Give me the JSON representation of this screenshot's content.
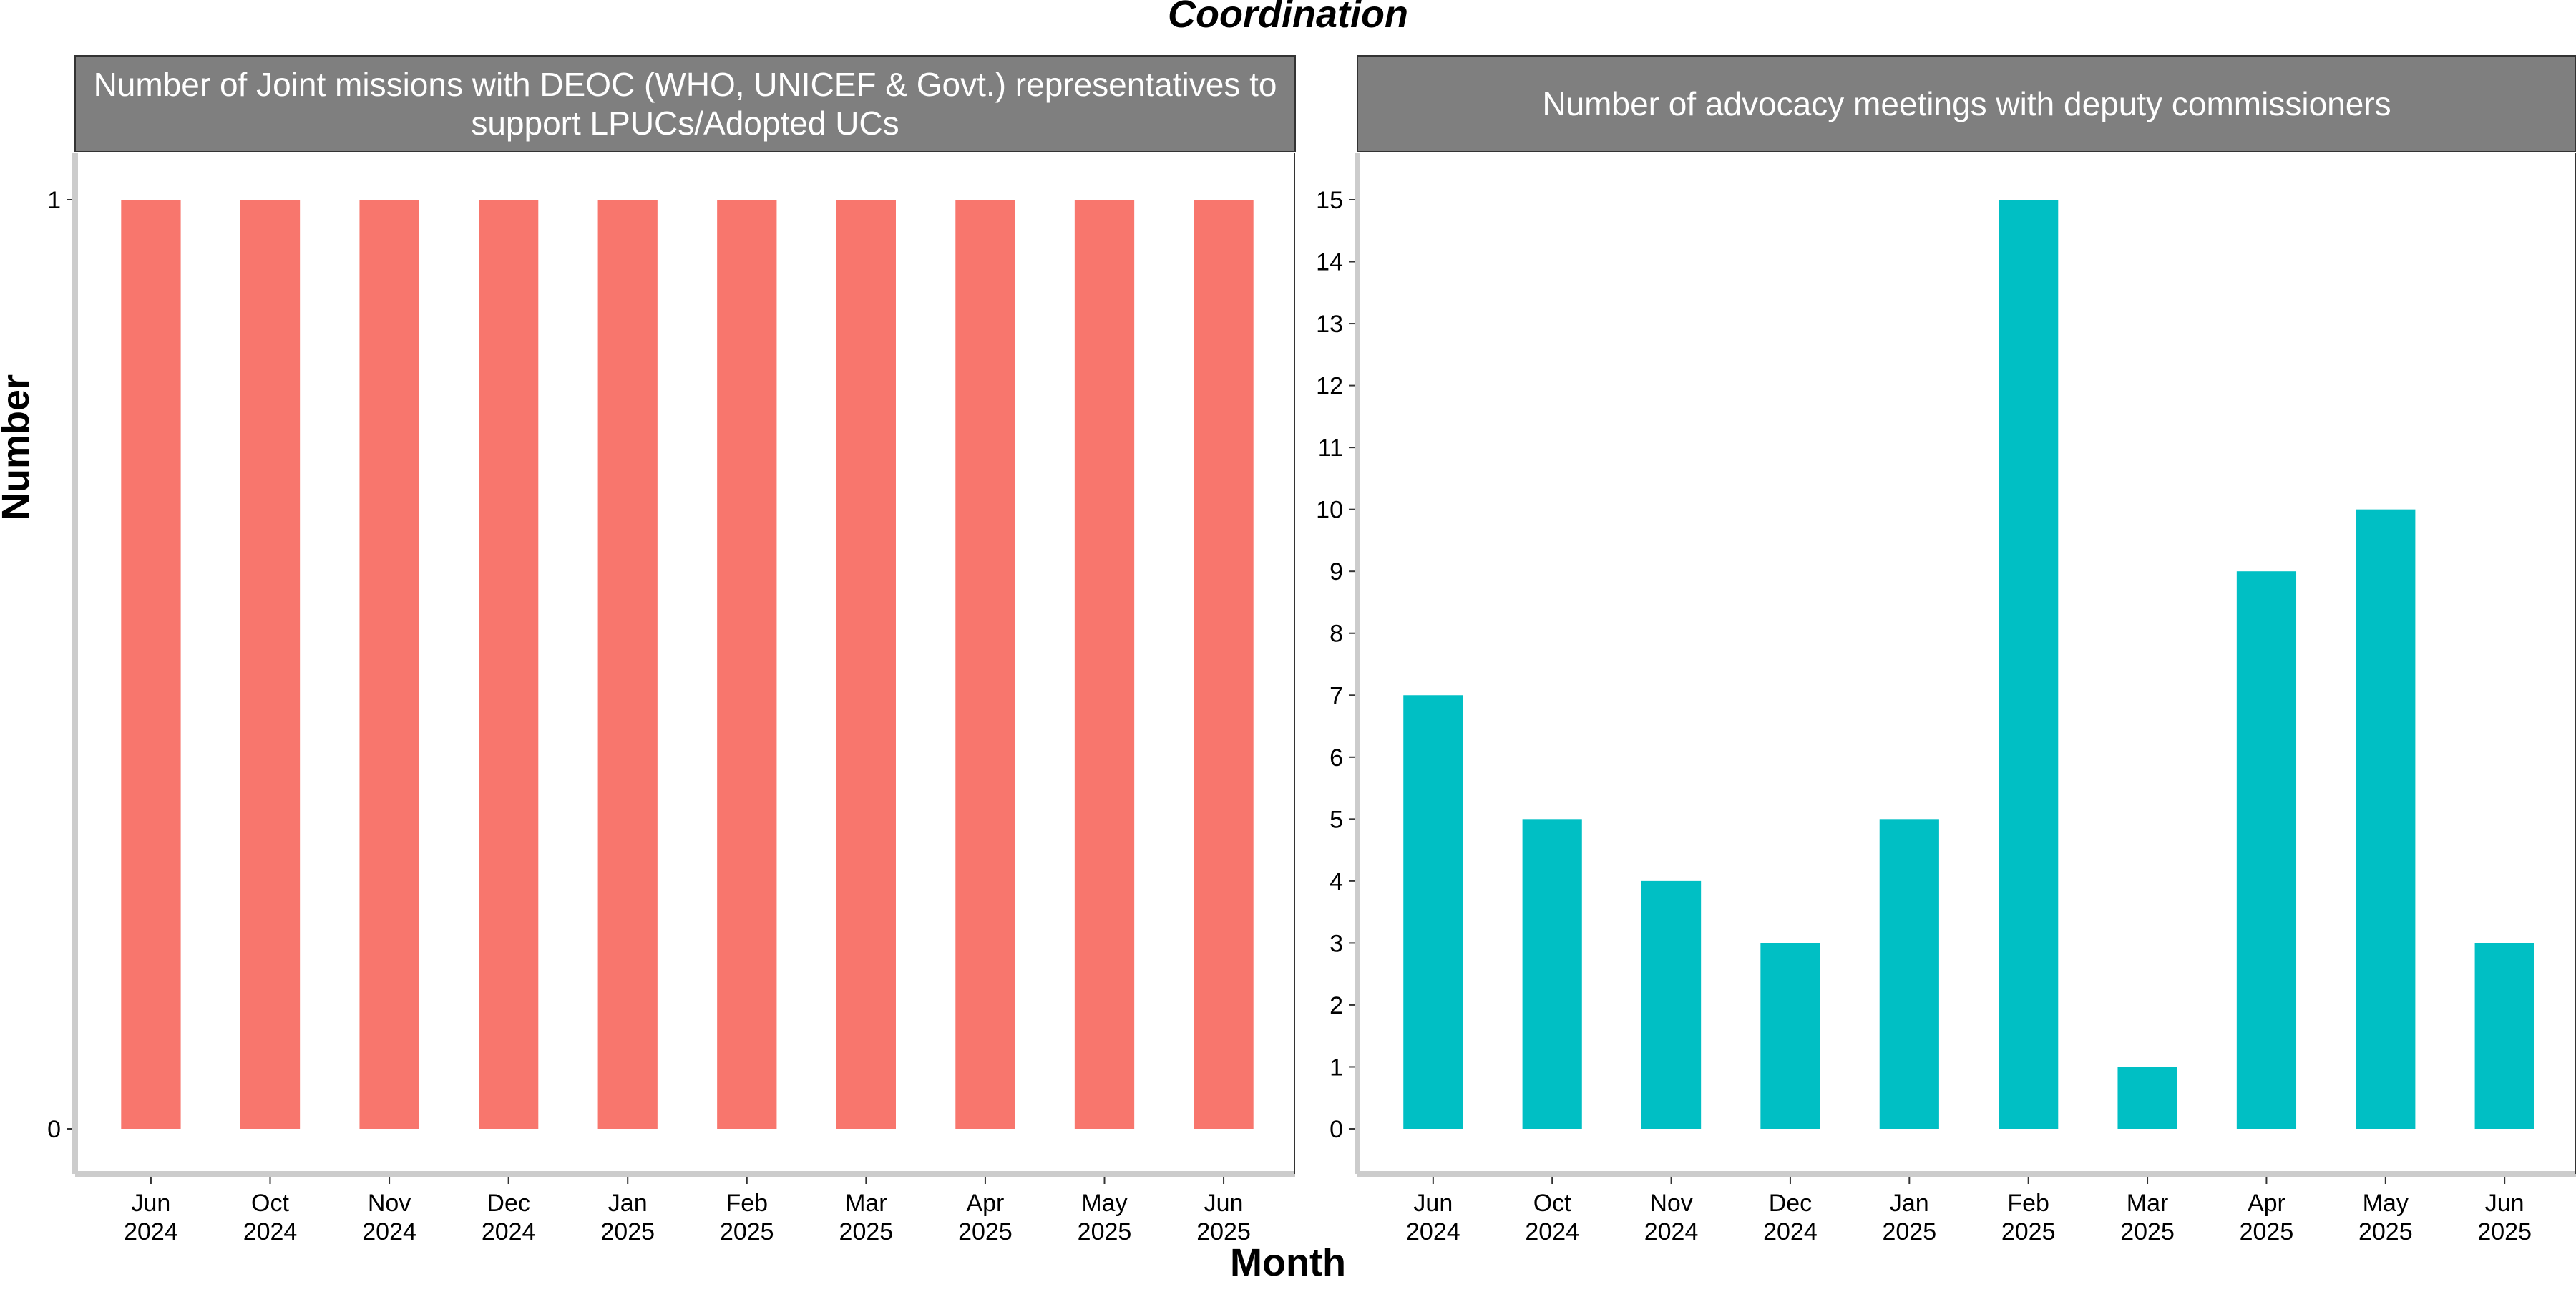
{
  "title": "Coordination",
  "xlabel": "Month",
  "ylabel": "Number",
  "colors": {
    "left_bars": "#F8766D",
    "right_bars": "#00BFC4",
    "strip": "#7F7F7F",
    "axis": "#CCCCCC"
  },
  "chart_data": [
    {
      "type": "bar",
      "strip_label_lines": [
        "Number of Joint missions with DEOC (WHO, UNICEF & Govt.) representatives to",
        "support LPUCs/Adopted UCs"
      ],
      "categories": [
        "Jun 2024",
        "Oct 2024",
        "Nov 2024",
        "Dec 2024",
        "Jan 2025",
        "Feb 2025",
        "Mar 2025",
        "Apr 2025",
        "May 2025",
        "Jun 2025"
      ],
      "values": [
        1,
        1,
        1,
        1,
        1,
        1,
        1,
        1,
        1,
        1
      ],
      "ylim": [
        0,
        1
      ],
      "yticks": [
        0,
        1
      ],
      "grid": false
    },
    {
      "type": "bar",
      "strip_label_lines": [
        "Number of advocacy meetings with deputy commissioners"
      ],
      "categories": [
        "Jun 2024",
        "Oct 2024",
        "Nov 2024",
        "Dec 2024",
        "Jan 2025",
        "Feb 2025",
        "Mar 2025",
        "Apr 2025",
        "May 2025",
        "Jun 2025"
      ],
      "values": [
        7,
        5,
        4,
        3,
        5,
        15,
        1,
        9,
        10,
        3
      ],
      "ylim": [
        0,
        15
      ],
      "yticks": [
        0,
        1,
        2,
        3,
        4,
        5,
        6,
        7,
        8,
        9,
        10,
        11,
        12,
        13,
        14,
        15
      ],
      "grid": false
    }
  ]
}
